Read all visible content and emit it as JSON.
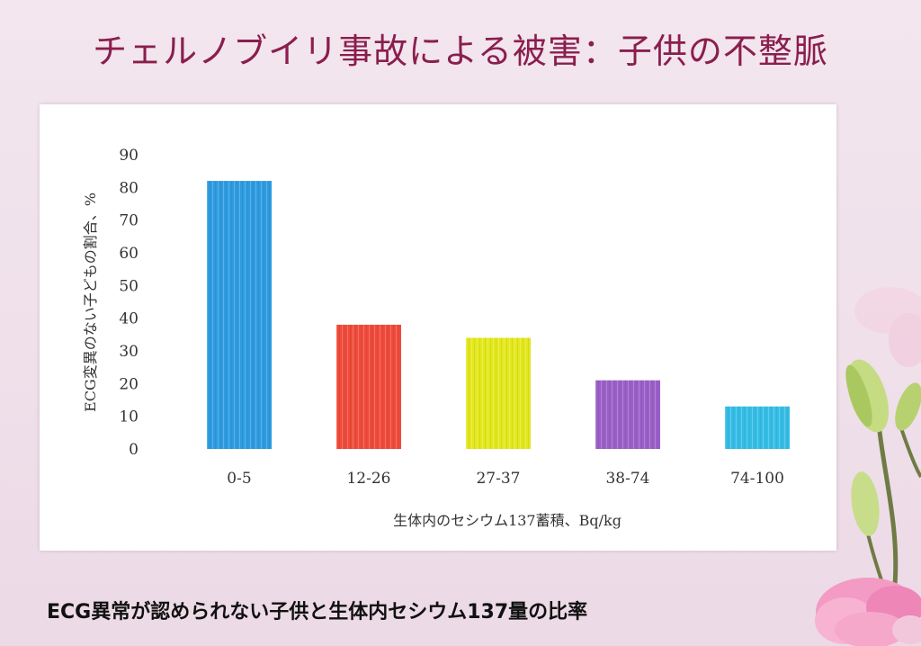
{
  "slide": {
    "title": "チェルノブイリ事故による被害：子供の不整脈",
    "caption": "ECG異常が認められない子供と生体内セシウム137量の比率"
  },
  "colors": {
    "title": "#8a1e4e",
    "background": "#f0e2eb",
    "bars": [
      "#2e9be0",
      "#ef4a3a",
      "#e3e81c",
      "#9a5fc8",
      "#35bde6"
    ]
  },
  "decoration": {
    "flower": "pink-carnation-illustration"
  },
  "chart_data": {
    "type": "bar",
    "categories": [
      "0-5",
      "12-26",
      "27-37",
      "38-74",
      "74-100"
    ],
    "values": [
      82,
      38,
      34,
      21,
      13
    ],
    "xlabel": "生体内のセシウム137蓄積、Bq/kg",
    "ylabel": "ECG変異のない子どもの割合、%",
    "ylim": [
      0,
      90
    ],
    "yticks": [
      0,
      10,
      20,
      30,
      40,
      50,
      60,
      70,
      80,
      90
    ],
    "grid": false,
    "legend": "none"
  }
}
